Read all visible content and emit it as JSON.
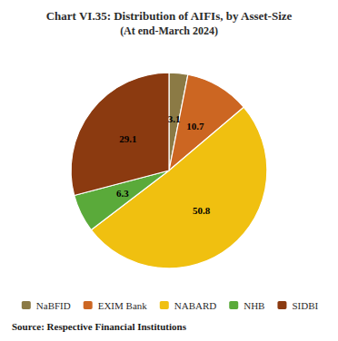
{
  "chart_data": {
    "type": "pie",
    "title": "Chart VI.35: Distribution of AIFIs, by Asset-Size",
    "subtitle": "(At end-March 2024)",
    "source": "Source: Respective Financial Institutions",
    "categories": [
      "NaBFID",
      "EXIM Bank",
      "NABARD",
      "NHB",
      "SIDBI"
    ],
    "values": [
      3.1,
      10.7,
      50.8,
      6.3,
      29.1
    ],
    "colors": [
      "#8b7a45",
      "#cc6622",
      "#f0c010",
      "#5aaa3a",
      "#8b3a10"
    ],
    "data_labels": true,
    "legend": "bottom"
  }
}
